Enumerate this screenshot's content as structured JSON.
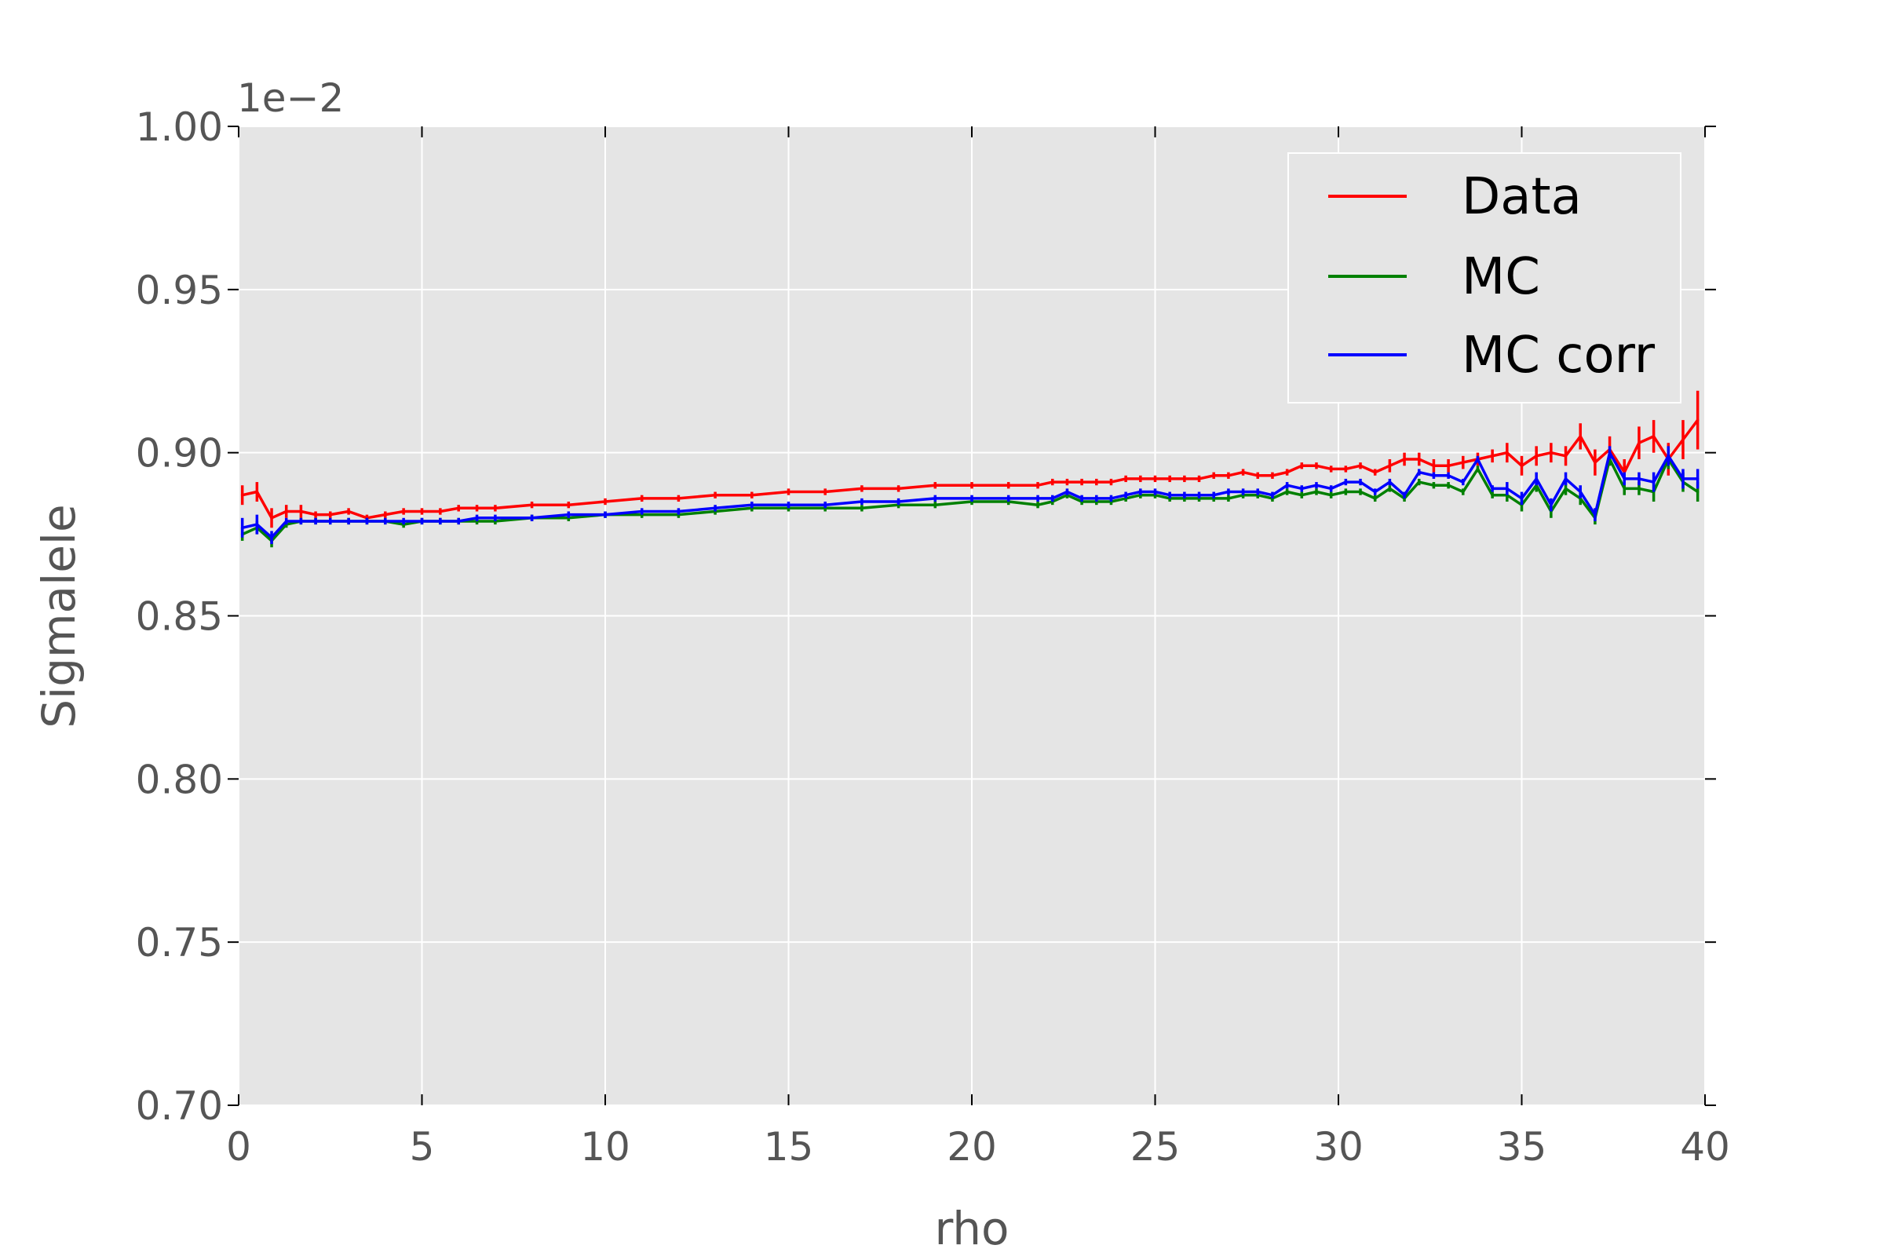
{
  "chart_data": {
    "type": "line",
    "title": "",
    "xlabel": "rho",
    "ylabel": "Sigmalele",
    "y_offset_label": "1e−2",
    "xlim": [
      0,
      40
    ],
    "ylim": [
      0.7,
      1.0
    ],
    "xticks": [
      0,
      5,
      10,
      15,
      20,
      25,
      30,
      35,
      40
    ],
    "xtick_labels": [
      "0",
      "5",
      "10",
      "15",
      "20",
      "25",
      "30",
      "35",
      "40"
    ],
    "yticks": [
      0.7,
      0.75,
      0.8,
      0.85,
      0.9,
      0.95,
      1.0
    ],
    "ytick_labels": [
      "0.70",
      "0.75",
      "0.80",
      "0.85",
      "0.90",
      "0.95",
      "1.00"
    ],
    "grid": true,
    "legend_position": "top-right",
    "x": [
      0.1,
      0.5,
      0.9,
      1.3,
      1.7,
      2.1,
      2.5,
      3.0,
      3.5,
      4.0,
      4.5,
      5.0,
      5.5,
      6.0,
      6.5,
      7.0,
      8.0,
      9.0,
      10.0,
      11.0,
      12.0,
      13.0,
      14.0,
      15.0,
      16.0,
      17.0,
      18.0,
      19.0,
      20.0,
      21.0,
      21.8,
      22.2,
      22.6,
      23.0,
      23.4,
      23.8,
      24.2,
      24.6,
      25.0,
      25.4,
      25.8,
      26.2,
      26.6,
      27.0,
      27.4,
      27.8,
      28.2,
      28.6,
      29.0,
      29.4,
      29.8,
      30.2,
      30.6,
      31.0,
      31.4,
      31.8,
      32.2,
      32.6,
      33.0,
      33.4,
      33.8,
      34.2,
      34.6,
      35.0,
      35.4,
      35.8,
      36.2,
      36.6,
      37.0,
      37.4,
      37.8,
      38.2,
      38.6,
      39.0,
      39.4,
      39.8
    ],
    "series": [
      {
        "name": "Data",
        "color": "#ff0000",
        "values": [
          0.887,
          0.888,
          0.88,
          0.882,
          0.882,
          0.881,
          0.881,
          0.882,
          0.88,
          0.881,
          0.882,
          0.882,
          0.882,
          0.883,
          0.883,
          0.883,
          0.884,
          0.884,
          0.885,
          0.886,
          0.886,
          0.887,
          0.887,
          0.888,
          0.888,
          0.889,
          0.889,
          0.89,
          0.89,
          0.89,
          0.89,
          0.891,
          0.891,
          0.891,
          0.891,
          0.891,
          0.892,
          0.892,
          0.892,
          0.892,
          0.892,
          0.892,
          0.893,
          0.893,
          0.894,
          0.893,
          0.893,
          0.894,
          0.896,
          0.896,
          0.895,
          0.895,
          0.896,
          0.894,
          0.896,
          0.898,
          0.898,
          0.896,
          0.896,
          0.897,
          0.898,
          0.899,
          0.9,
          0.896,
          0.899,
          0.9,
          0.899,
          0.905,
          0.897,
          0.901,
          0.894,
          0.903,
          0.905,
          0.898,
          0.904,
          0.91
        ],
        "errors": [
          0.003,
          0.003,
          0.003,
          0.002,
          0.002,
          0.001,
          0.001,
          0.001,
          0.001,
          0.001,
          0.001,
          0.001,
          0.001,
          0.001,
          0.001,
          0.001,
          0.001,
          0.001,
          0.001,
          0.001,
          0.001,
          0.001,
          0.001,
          0.001,
          0.001,
          0.001,
          0.001,
          0.001,
          0.001,
          0.001,
          0.001,
          0.001,
          0.001,
          0.001,
          0.001,
          0.001,
          0.001,
          0.001,
          0.001,
          0.001,
          0.001,
          0.001,
          0.001,
          0.001,
          0.001,
          0.001,
          0.001,
          0.001,
          0.001,
          0.001,
          0.001,
          0.001,
          0.001,
          0.001,
          0.002,
          0.002,
          0.002,
          0.002,
          0.002,
          0.002,
          0.002,
          0.002,
          0.003,
          0.003,
          0.003,
          0.003,
          0.003,
          0.004,
          0.004,
          0.004,
          0.004,
          0.005,
          0.005,
          0.005,
          0.006,
          0.009
        ]
      },
      {
        "name": "MC",
        "color": "#008000",
        "values": [
          0.875,
          0.877,
          0.873,
          0.878,
          0.879,
          0.879,
          0.879,
          0.879,
          0.879,
          0.879,
          0.878,
          0.879,
          0.879,
          0.879,
          0.879,
          0.879,
          0.88,
          0.88,
          0.881,
          0.881,
          0.881,
          0.882,
          0.883,
          0.883,
          0.883,
          0.883,
          0.884,
          0.884,
          0.885,
          0.885,
          0.884,
          0.885,
          0.887,
          0.885,
          0.885,
          0.885,
          0.886,
          0.887,
          0.887,
          0.886,
          0.886,
          0.886,
          0.886,
          0.886,
          0.887,
          0.887,
          0.886,
          0.888,
          0.887,
          0.888,
          0.887,
          0.888,
          0.888,
          0.886,
          0.889,
          0.886,
          0.891,
          0.89,
          0.89,
          0.888,
          0.895,
          0.887,
          0.887,
          0.884,
          0.89,
          0.882,
          0.889,
          0.886,
          0.88,
          0.898,
          0.889,
          0.889,
          0.888,
          0.898,
          0.891,
          0.888
        ],
        "errors": [
          0.002,
          0.002,
          0.002,
          0.001,
          0.001,
          0.001,
          0.001,
          0.001,
          0.001,
          0.001,
          0.001,
          0.001,
          0.001,
          0.001,
          0.001,
          0.001,
          0.001,
          0.001,
          0.001,
          0.001,
          0.001,
          0.001,
          0.001,
          0.001,
          0.001,
          0.001,
          0.001,
          0.001,
          0.001,
          0.001,
          0.001,
          0.001,
          0.001,
          0.001,
          0.001,
          0.001,
          0.001,
          0.001,
          0.001,
          0.001,
          0.001,
          0.001,
          0.001,
          0.001,
          0.001,
          0.001,
          0.001,
          0.001,
          0.001,
          0.001,
          0.001,
          0.001,
          0.001,
          0.001,
          0.001,
          0.001,
          0.001,
          0.001,
          0.001,
          0.001,
          0.001,
          0.001,
          0.002,
          0.002,
          0.002,
          0.002,
          0.002,
          0.002,
          0.002,
          0.002,
          0.002,
          0.002,
          0.003,
          0.003,
          0.003,
          0.003
        ]
      },
      {
        "name": "MC corr",
        "color": "#0000ff",
        "values": [
          0.877,
          0.878,
          0.874,
          0.879,
          0.879,
          0.879,
          0.879,
          0.879,
          0.879,
          0.879,
          0.879,
          0.879,
          0.879,
          0.879,
          0.88,
          0.88,
          0.88,
          0.881,
          0.881,
          0.882,
          0.882,
          0.883,
          0.884,
          0.884,
          0.884,
          0.885,
          0.885,
          0.886,
          0.886,
          0.886,
          0.886,
          0.886,
          0.888,
          0.886,
          0.886,
          0.886,
          0.887,
          0.888,
          0.888,
          0.887,
          0.887,
          0.887,
          0.887,
          0.888,
          0.888,
          0.888,
          0.887,
          0.89,
          0.889,
          0.89,
          0.889,
          0.891,
          0.891,
          0.888,
          0.891,
          0.887,
          0.894,
          0.893,
          0.893,
          0.891,
          0.898,
          0.889,
          0.889,
          0.886,
          0.892,
          0.884,
          0.892,
          0.888,
          0.881,
          0.9,
          0.892,
          0.892,
          0.891,
          0.899,
          0.892,
          0.892
        ],
        "errors": [
          0.003,
          0.003,
          0.002,
          0.001,
          0.001,
          0.001,
          0.001,
          0.001,
          0.001,
          0.001,
          0.001,
          0.001,
          0.001,
          0.001,
          0.001,
          0.001,
          0.001,
          0.001,
          0.001,
          0.001,
          0.001,
          0.001,
          0.001,
          0.001,
          0.001,
          0.001,
          0.001,
          0.001,
          0.001,
          0.001,
          0.001,
          0.001,
          0.001,
          0.001,
          0.001,
          0.001,
          0.001,
          0.001,
          0.001,
          0.001,
          0.001,
          0.001,
          0.001,
          0.001,
          0.001,
          0.001,
          0.001,
          0.001,
          0.001,
          0.001,
          0.001,
          0.001,
          0.001,
          0.001,
          0.001,
          0.001,
          0.001,
          0.001,
          0.001,
          0.001,
          0.001,
          0.001,
          0.002,
          0.002,
          0.002,
          0.002,
          0.002,
          0.002,
          0.002,
          0.002,
          0.002,
          0.002,
          0.003,
          0.003,
          0.003,
          0.003
        ]
      }
    ]
  }
}
